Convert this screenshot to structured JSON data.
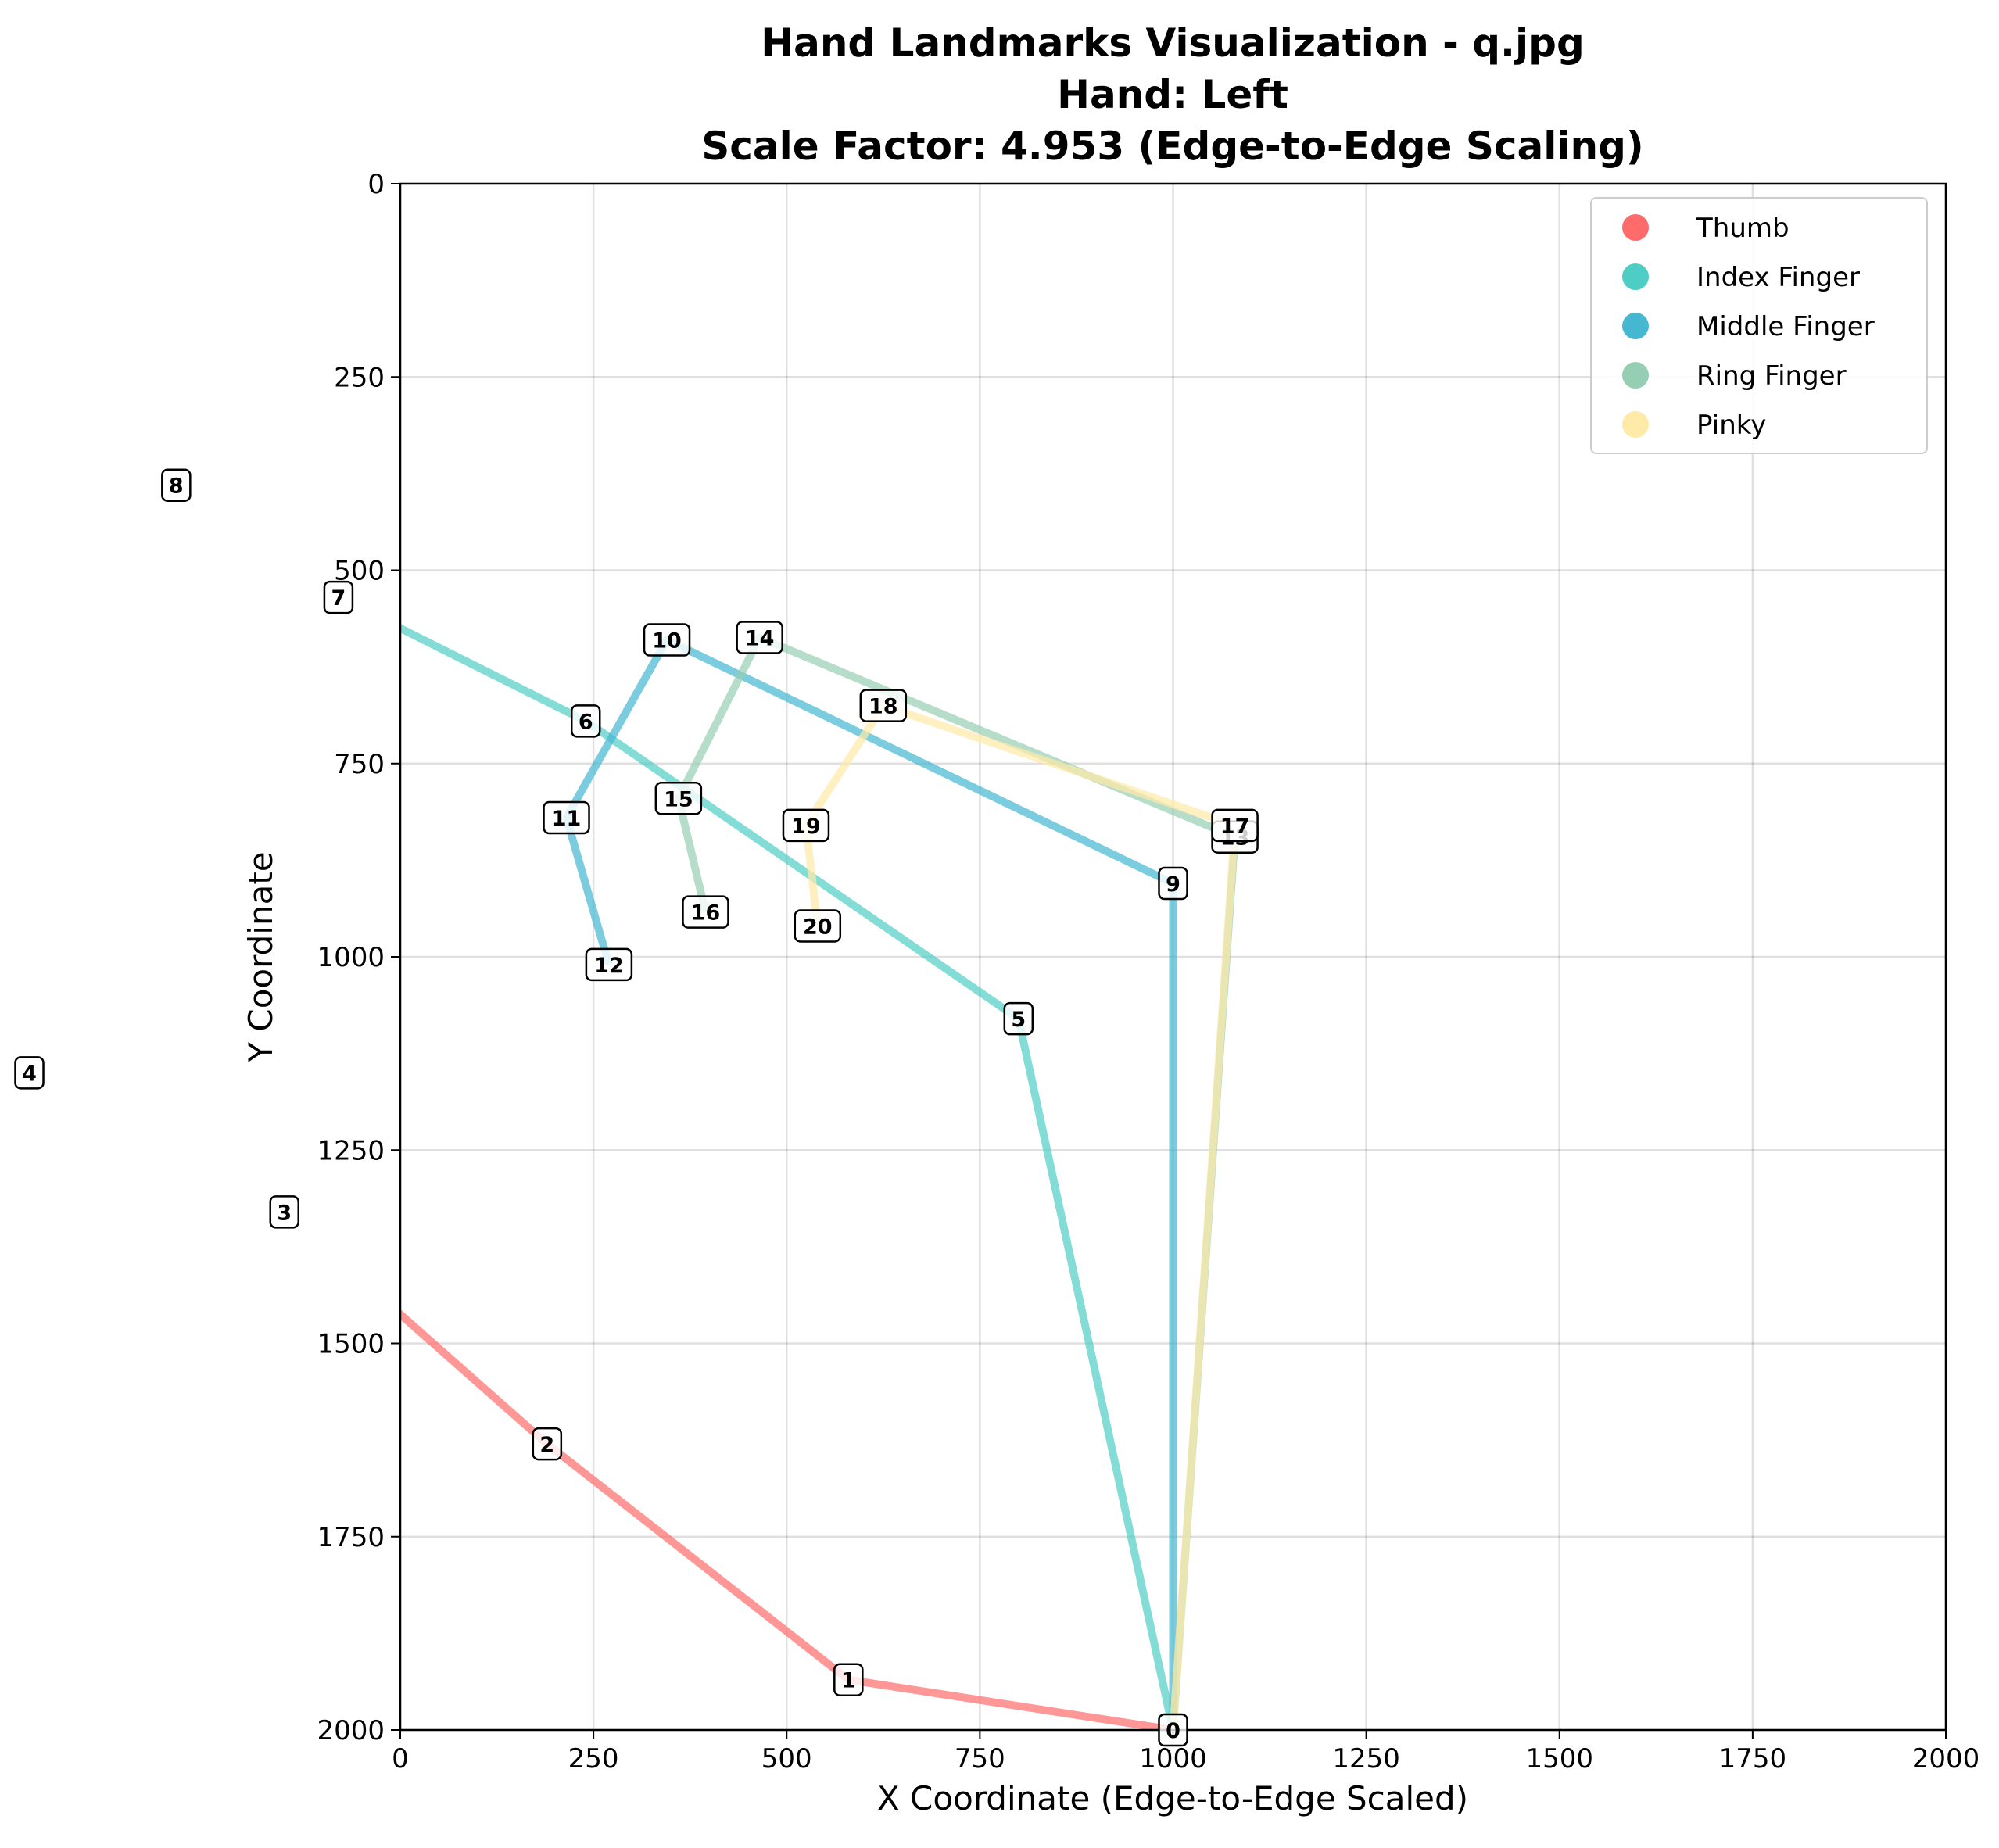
{
  "chart_data": {
    "type": "line",
    "title_lines": [
      "Hand Landmarks Visualization - q.jpg",
      "Hand: Left",
      "Scale Factor: 4.953 (Edge-to-Edge Scaling)"
    ],
    "xlabel": "X Coordinate (Edge-to-Edge Scaled)",
    "ylabel": "Y Coordinate",
    "xlim": [
      0,
      2000
    ],
    "ylim": [
      2000,
      0
    ],
    "y_inverted": true,
    "xticks": [
      0,
      250,
      500,
      750,
      1000,
      1250,
      1500,
      1750,
      2000
    ],
    "yticks": [
      0,
      250,
      500,
      750,
      1000,
      1250,
      1500,
      1750,
      2000
    ],
    "grid": true,
    "legend_position": "top-right",
    "landmarks": [
      {
        "id": "0",
        "x": 1000,
        "y": 2000
      },
      {
        "id": "1",
        "x": 580,
        "y": 1935
      },
      {
        "id": "2",
        "x": 190,
        "y": 1630
      },
      {
        "id": "3",
        "x": -150,
        "y": 1330
      },
      {
        "id": "4",
        "x": -480,
        "y": 1150
      },
      {
        "id": "5",
        "x": 800,
        "y": 1080
      },
      {
        "id": "6",
        "x": 240,
        "y": 695
      },
      {
        "id": "7",
        "x": -80,
        "y": 535
      },
      {
        "id": "8",
        "x": -290,
        "y": 390
      },
      {
        "id": "9",
        "x": 1000,
        "y": 905
      },
      {
        "id": "10",
        "x": 345,
        "y": 590
      },
      {
        "id": "11",
        "x": 215,
        "y": 820
      },
      {
        "id": "12",
        "x": 270,
        "y": 1010
      },
      {
        "id": "13",
        "x": 1080,
        "y": 845
      },
      {
        "id": "14",
        "x": 465,
        "y": 587
      },
      {
        "id": "15",
        "x": 360,
        "y": 795
      },
      {
        "id": "16",
        "x": 395,
        "y": 942
      },
      {
        "id": "17",
        "x": 1080,
        "y": 830
      },
      {
        "id": "18",
        "x": 625,
        "y": 675
      },
      {
        "id": "19",
        "x": 525,
        "y": 830
      },
      {
        "id": "20",
        "x": 540,
        "y": 960
      }
    ],
    "series": [
      {
        "name": "Thumb",
        "color": "#ff6b6b",
        "points": [
          "0",
          "1",
          "2",
          "3",
          "4"
        ]
      },
      {
        "name": "Index Finger",
        "color": "#4ecdc4",
        "points": [
          "0",
          "5",
          "6",
          "7",
          "8"
        ]
      },
      {
        "name": "Middle Finger",
        "color": "#45b7d1",
        "points": [
          "0",
          "9",
          "10",
          "11",
          "12"
        ]
      },
      {
        "name": "Ring Finger",
        "color": "#96ceb4",
        "points": [
          "0",
          "13",
          "14",
          "15",
          "16"
        ]
      },
      {
        "name": "Pinky",
        "color": "#ffeaa7",
        "points": [
          "0",
          "17",
          "18",
          "19",
          "20"
        ]
      }
    ]
  }
}
